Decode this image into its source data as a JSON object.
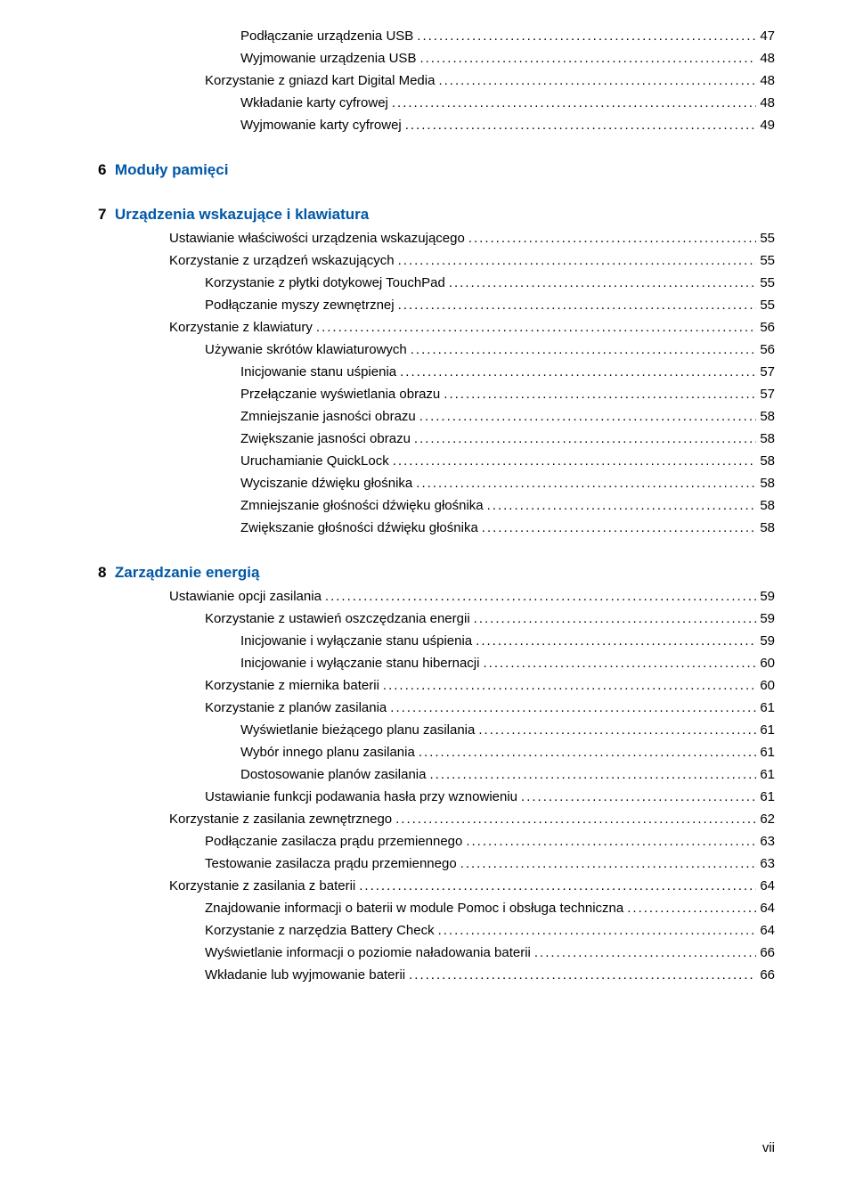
{
  "colors": {
    "link": "#0057a6",
    "text": "#000000",
    "background": "#ffffff"
  },
  "font_size_body": 15,
  "font_size_chapter": 17,
  "toc": {
    "block0": [
      {
        "label": "Podłączanie urządzenia USB",
        "page": "47",
        "indent": 4
      },
      {
        "label": "Wyjmowanie urządzenia USB",
        "page": "48",
        "indent": 4
      },
      {
        "label": "Korzystanie z gniazd kart Digital Media",
        "page": "48",
        "indent": 3
      },
      {
        "label": "Wkładanie karty cyfrowej",
        "page": "48",
        "indent": 4
      },
      {
        "label": "Wyjmowanie karty cyfrowej",
        "page": "49",
        "indent": 4
      }
    ],
    "chapter6": "6  Moduły pamięci",
    "chapter7": "7  Urządzenia wskazujące i klawiatura",
    "block7": [
      {
        "label": "Ustawianie właściwości urządzenia wskazującego",
        "page": "55",
        "indent": 2
      },
      {
        "label": "Korzystanie z urządzeń wskazujących",
        "page": "55",
        "indent": 2
      },
      {
        "label": "Korzystanie z płytki dotykowej TouchPad",
        "page": "55",
        "indent": 3
      },
      {
        "label": "Podłączanie myszy zewnętrznej",
        "page": "55",
        "indent": 3
      },
      {
        "label": "Korzystanie z klawiatury",
        "page": "56",
        "indent": 2
      },
      {
        "label": "Używanie skrótów klawiaturowych",
        "page": "56",
        "indent": 3
      },
      {
        "label": "Inicjowanie stanu uśpienia",
        "page": "57",
        "indent": 4
      },
      {
        "label": "Przełączanie wyświetlania obrazu",
        "page": "57",
        "indent": 4
      },
      {
        "label": "Zmniejszanie jasności obrazu",
        "page": "58",
        "indent": 4
      },
      {
        "label": "Zwiększanie jasności obrazu",
        "page": "58",
        "indent": 4
      },
      {
        "label": "Uruchamianie QuickLock",
        "page": "58",
        "indent": 4
      },
      {
        "label": "Wyciszanie dźwięku głośnika",
        "page": "58",
        "indent": 4
      },
      {
        "label": "Zmniejszanie głośności dźwięku głośnika",
        "page": "58",
        "indent": 4
      },
      {
        "label": "Zwiększanie głośności dźwięku głośnika",
        "page": "58",
        "indent": 4
      }
    ],
    "chapter8": "8  Zarządzanie energią",
    "block8": [
      {
        "label": "Ustawianie opcji zasilania",
        "page": "59",
        "indent": 2
      },
      {
        "label": "Korzystanie z ustawień oszczędzania energii",
        "page": "59",
        "indent": 3
      },
      {
        "label": "Inicjowanie i wyłączanie stanu uśpienia",
        "page": "59",
        "indent": 4
      },
      {
        "label": "Inicjowanie i wyłączanie stanu hibernacji",
        "page": "60",
        "indent": 4
      },
      {
        "label": "Korzystanie z miernika baterii",
        "page": "60",
        "indent": 3
      },
      {
        "label": "Korzystanie z planów zasilania",
        "page": "61",
        "indent": 3
      },
      {
        "label": "Wyświetlanie bieżącego planu zasilania",
        "page": "61",
        "indent": 4
      },
      {
        "label": "Wybór innego planu zasilania",
        "page": "61",
        "indent": 4
      },
      {
        "label": "Dostosowanie planów zasilania",
        "page": "61",
        "indent": 4
      },
      {
        "label": "Ustawianie funkcji podawania hasła przy wznowieniu",
        "page": "61",
        "indent": 3
      },
      {
        "label": "Korzystanie z zasilania zewnętrznego",
        "page": "62",
        "indent": 2
      },
      {
        "label": "Podłączanie zasilacza prądu przemiennego",
        "page": "63",
        "indent": 3
      },
      {
        "label": "Testowanie zasilacza prądu przemiennego",
        "page": "63",
        "indent": 3
      },
      {
        "label": "Korzystanie z zasilania z baterii",
        "page": "64",
        "indent": 2
      },
      {
        "label": "Znajdowanie informacji o baterii w module Pomoc i obsługa techniczna",
        "page": "64",
        "indent": 3
      },
      {
        "label": "Korzystanie z narzędzia Battery Check",
        "page": "64",
        "indent": 3
      },
      {
        "label": "Wyświetlanie informacji o poziomie naładowania baterii",
        "page": "66",
        "indent": 3
      },
      {
        "label": "Wkładanie lub wyjmowanie baterii",
        "page": "66",
        "indent": 3
      }
    ]
  },
  "page_number": "vii"
}
